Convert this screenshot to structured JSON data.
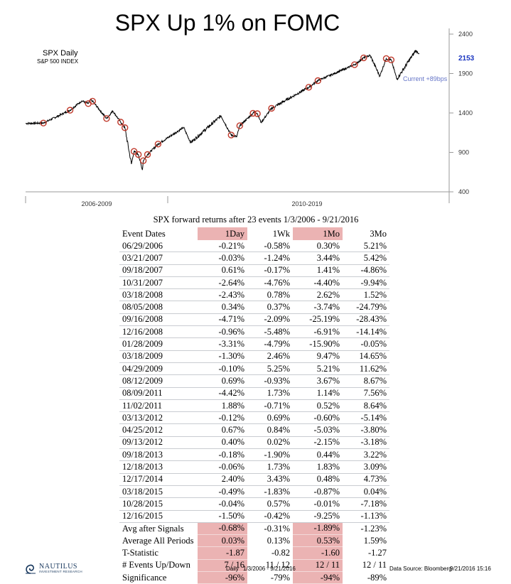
{
  "page_title": "SPX Up 1% on FOMC",
  "chart_data": {
    "type": "line",
    "series_title": "SPX Daily",
    "series_subtitle": "S&P 500 INDEX",
    "last_value_label": "2153",
    "annotation": "Current +89bps",
    "y_ticks": [
      "2400",
      "1900",
      "1400",
      "900",
      "400"
    ],
    "ylim": [
      400,
      2400
    ],
    "period_labels": [
      "2006-2009",
      "2010-2019"
    ],
    "line_color": "#000000",
    "marker_color": "#c0392b",
    "x": [
      "2006-01-03",
      "2006-06-29",
      "2007-03-21",
      "2007-07-15",
      "2007-09-18",
      "2007-10-09",
      "2007-10-31",
      "2008-03-18",
      "2008-05-19",
      "2008-08-05",
      "2008-09-16",
      "2008-11-20",
      "2008-12-16",
      "2009-01-28",
      "2009-03-09",
      "2009-03-18",
      "2009-04-29",
      "2009-08-12",
      "2010-04-23",
      "2010-07-02",
      "2011-04-29",
      "2011-08-09",
      "2011-10-03",
      "2011-11-02",
      "2012-03-13",
      "2012-04-02",
      "2012-04-25",
      "2012-06-01",
      "2012-09-13",
      "2013-09-18",
      "2013-12-18",
      "2014-12-17",
      "2015-03-18",
      "2015-05-21",
      "2015-08-25",
      "2015-10-28",
      "2015-12-16",
      "2016-02-11",
      "2016-08-15",
      "2016-09-21"
    ],
    "y": [
      1268,
      1272,
      1435,
      1553,
      1519,
      1565,
      1549,
      1330,
      1426,
      1284,
      1213,
      752,
      913,
      873,
      677,
      795,
      873,
      1005,
      1217,
      1023,
      1364,
      1120,
      1099,
      1238,
      1396,
      1419,
      1391,
      1278,
      1459,
      1726,
      1810,
      2012,
      2099,
      2131,
      1867,
      2090,
      2073,
      1829,
      2190,
      2153
    ],
    "event_x": [
      "2006-06-29",
      "2007-03-21",
      "2007-09-18",
      "2007-10-31",
      "2008-03-18",
      "2008-08-05",
      "2008-09-16",
      "2008-12-16",
      "2009-01-28",
      "2009-03-18",
      "2009-04-29",
      "2009-08-12",
      "2011-08-09",
      "2011-11-02",
      "2012-03-13",
      "2012-04-25",
      "2012-09-13",
      "2013-09-18",
      "2013-12-18",
      "2014-12-17",
      "2015-03-18",
      "2015-10-28",
      "2015-12-16"
    ],
    "event_y": [
      1272,
      1435,
      1519,
      1549,
      1330,
      1284,
      1213,
      913,
      873,
      795,
      873,
      1005,
      1120,
      1238,
      1396,
      1391,
      1459,
      1726,
      1810,
      2012,
      2099,
      2090,
      2073
    ]
  },
  "table": {
    "title": "SPX forward returns after 23 events 1/3/2006 - 9/21/2016",
    "headers": [
      "Event Dates",
      "1Day",
      "1Wk",
      "1Mo",
      "3Mo"
    ],
    "rows": [
      [
        "06/29/2006",
        "-0.21%",
        "-0.58%",
        "0.30%",
        "5.21%"
      ],
      [
        "03/21/2007",
        "-0.03%",
        "-1.24%",
        "3.44%",
        "5.42%"
      ],
      [
        "09/18/2007",
        "0.61%",
        "-0.17%",
        "1.41%",
        "-4.86%"
      ],
      [
        "10/31/2007",
        "-2.64%",
        "-4.76%",
        "-4.40%",
        "-9.94%"
      ],
      [
        "03/18/2008",
        "-2.43%",
        "0.78%",
        "2.62%",
        "1.52%"
      ],
      [
        "08/05/2008",
        "0.34%",
        "0.37%",
        "-3.74%",
        "-24.79%"
      ],
      [
        "09/16/2008",
        "-4.71%",
        "-2.09%",
        "-25.19%",
        "-28.43%"
      ],
      [
        "12/16/2008",
        "-0.96%",
        "-5.48%",
        "-6.91%",
        "-14.14%"
      ],
      [
        "01/28/2009",
        "-3.31%",
        "-4.79%",
        "-15.90%",
        "-0.05%"
      ],
      [
        "03/18/2009",
        "-1.30%",
        "2.46%",
        "9.47%",
        "14.65%"
      ],
      [
        "04/29/2009",
        "-0.10%",
        "5.25%",
        "5.21%",
        "11.62%"
      ],
      [
        "08/12/2009",
        "0.69%",
        "-0.93%",
        "3.67%",
        "8.67%"
      ],
      [
        "08/09/2011",
        "-4.42%",
        "1.73%",
        "1.14%",
        "7.56%"
      ],
      [
        "11/02/2011",
        "1.88%",
        "-0.71%",
        "0.52%",
        "8.64%"
      ],
      [
        "03/13/2012",
        "-0.12%",
        "0.69%",
        "-0.60%",
        "-5.14%"
      ],
      [
        "04/25/2012",
        "0.67%",
        "0.84%",
        "-5.03%",
        "-3.80%"
      ],
      [
        "09/13/2012",
        "0.40%",
        "0.02%",
        "-2.15%",
        "-3.18%"
      ],
      [
        "09/18/2013",
        "-0.18%",
        "-1.90%",
        "0.44%",
        "3.22%"
      ],
      [
        "12/18/2013",
        "-0.06%",
        "1.73%",
        "1.83%",
        "3.09%"
      ],
      [
        "12/17/2014",
        "2.40%",
        "3.43%",
        "0.48%",
        "4.73%"
      ],
      [
        "03/18/2015",
        "-0.49%",
        "-1.83%",
        "-0.87%",
        "0.04%"
      ],
      [
        "10/28/2015",
        "-0.04%",
        "0.57%",
        "-0.01%",
        "-7.18%"
      ],
      [
        "12/16/2015",
        "-1.50%",
        "-0.42%",
        "-9.25%",
        "-1.13%"
      ]
    ],
    "summary": [
      [
        "Avg after Signals",
        "-0.68%",
        "-0.31%",
        "-1.89%",
        "-1.23%"
      ],
      [
        "Average All Periods",
        "0.03%",
        "0.13%",
        "0.53%",
        "1.59%"
      ],
      [
        "T-Statistic",
        "-1.87",
        "-0.82",
        "-1.60",
        "-1.27"
      ],
      [
        "# Events Up/Down",
        "7 / 16",
        "11 / 12",
        "12 / 11",
        "12 / 11"
      ],
      [
        "Significance",
        "-96%",
        "-79%",
        "-94%",
        "-89%"
      ]
    ],
    "highlight_color": "#ebb3b3"
  },
  "footer": {
    "logo_name": "NAUTILUS",
    "logo_sub": "INVESTMENT RESEARCH",
    "logo_icon": "nautilus-shell-icon",
    "daily": "Daily",
    "range": "1/3/2006 - 9/21/2016",
    "source": "Data Source: Bloomberg",
    "timestamp": "9/21/2016 15:16"
  }
}
